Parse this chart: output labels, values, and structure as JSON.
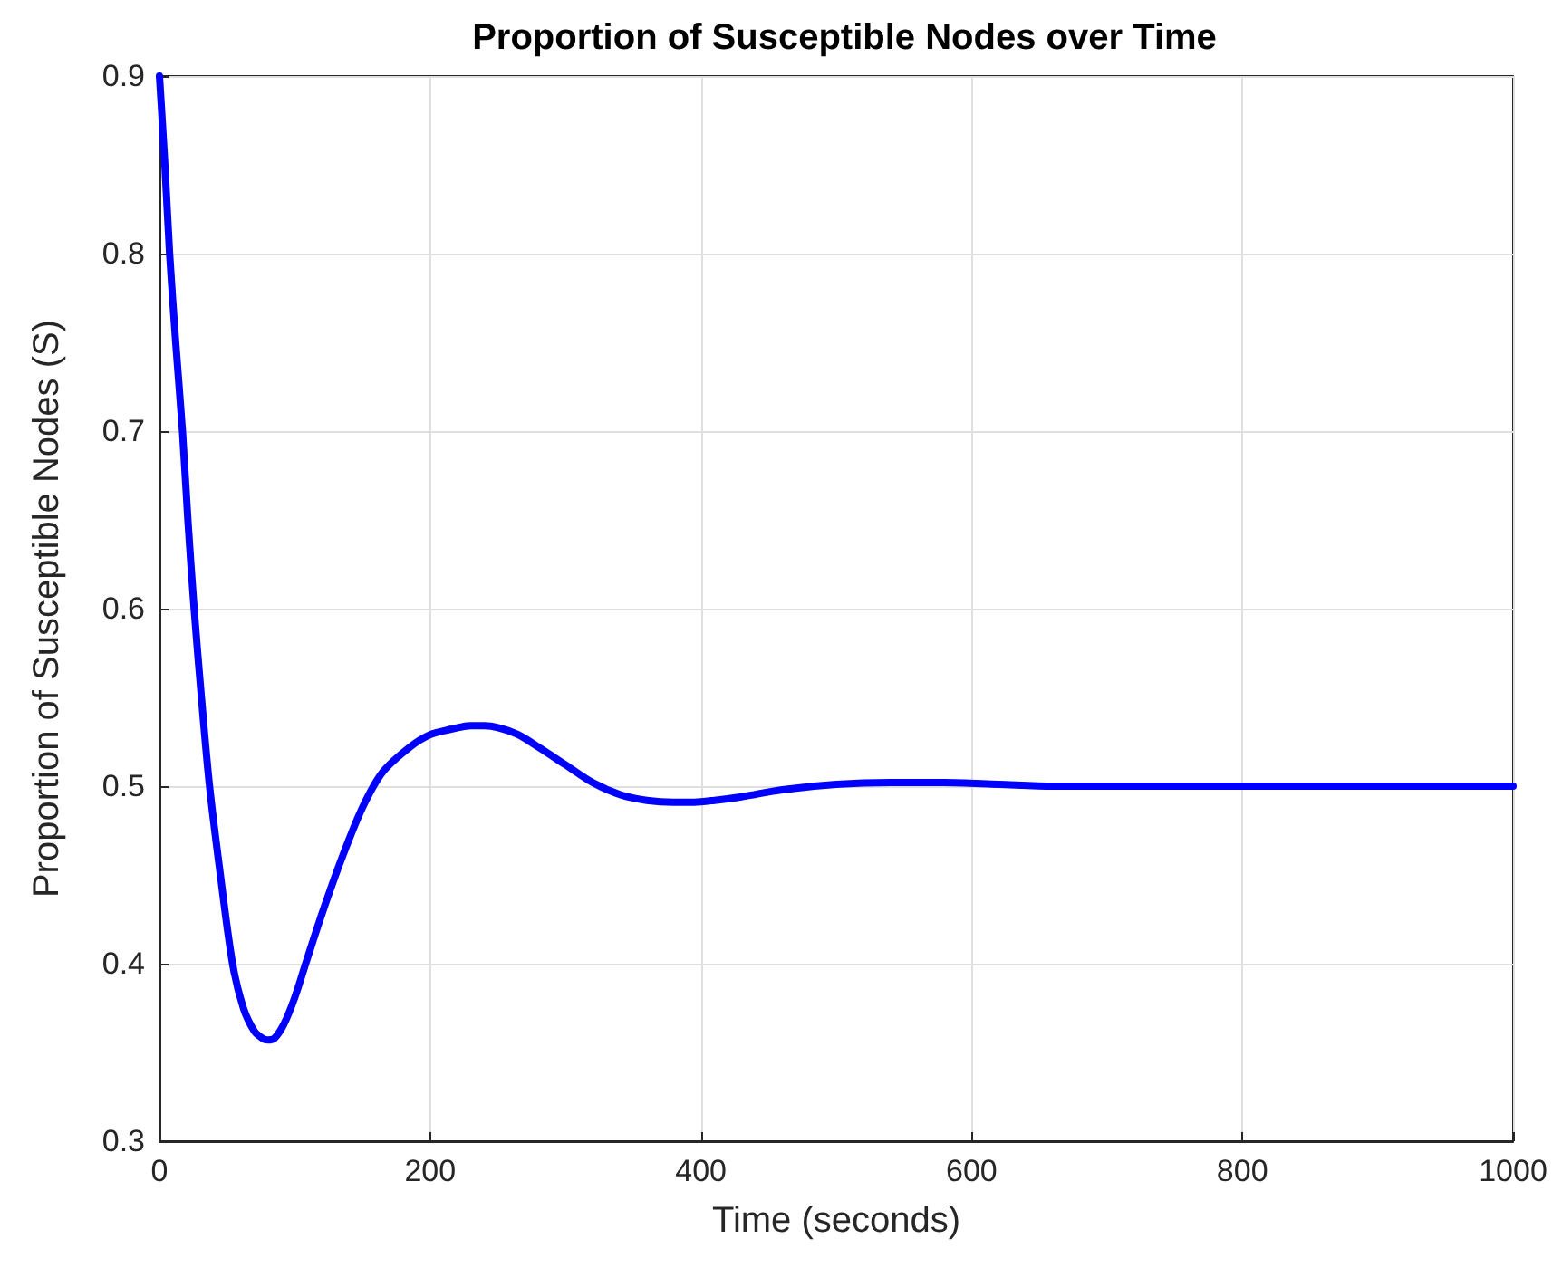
{
  "chart_data": {
    "type": "line",
    "title": "Proportion of Susceptible Nodes over Time",
    "xlabel": "Time (seconds)",
    "ylabel": "Proportion of Susceptible Nodes (S)",
    "x": [
      0,
      4,
      7.5,
      12,
      17,
      21,
      25.6,
      31,
      37,
      45,
      54,
      62,
      70,
      76,
      80,
      85,
      92,
      100,
      108,
      120,
      135,
      150,
      165,
      185,
      200,
      215,
      230,
      240,
      250,
      265,
      280,
      300,
      320,
      341,
      360,
      380,
      395,
      410,
      430,
      460,
      500,
      540,
      580,
      620,
      660,
      700,
      750,
      800,
      850,
      900,
      950,
      1000
    ],
    "series": [
      {
        "color": "#0000ff",
        "values": [
          0.9,
          0.85,
          0.8,
          0.75,
          0.7,
          0.65,
          0.6,
          0.55,
          0.5,
          0.45,
          0.4,
          0.375,
          0.362,
          0.358,
          0.357,
          0.358,
          0.366,
          0.381,
          0.4,
          0.428,
          0.46,
          0.488,
          0.508,
          0.522,
          0.529,
          0.532,
          0.534,
          0.534,
          0.533,
          0.529,
          0.522,
          0.512,
          0.502,
          0.495,
          0.492,
          0.491,
          0.491,
          0.492,
          0.494,
          0.498,
          0.501,
          0.502,
          0.502,
          0.501,
          0.5,
          0.5,
          0.5,
          0.5,
          0.5,
          0.5,
          0.5,
          0.5
        ]
      }
    ],
    "xlim": [
      0,
      1000
    ],
    "xticks": [
      0,
      200,
      400,
      600,
      800,
      1000
    ],
    "ylim": [
      0.3,
      0.9
    ],
    "yticks": [
      0.3,
      0.4,
      0.5,
      0.6,
      0.7,
      0.8,
      0.9
    ],
    "grid": true,
    "marker": "none",
    "line_style": "solid"
  }
}
